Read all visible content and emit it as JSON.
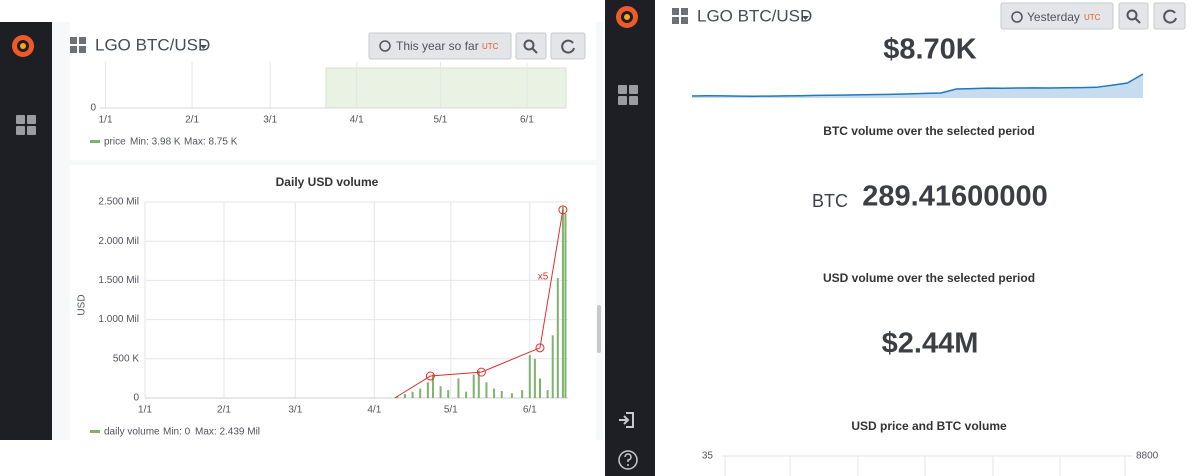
{
  "left": {
    "header": {
      "title": "LGO BTC/USD",
      "time_range": "This year so far",
      "timezone": "UTC"
    },
    "price_panel": {
      "type": "line",
      "xlim": [
        -2,
        165
      ],
      "xticks": [
        {
          "value": 0,
          "label": "1/1"
        },
        {
          "value": 31,
          "label": "2/1"
        },
        {
          "value": 59,
          "label": "3/1"
        },
        {
          "value": 90,
          "label": "4/1"
        },
        {
          "value": 120,
          "label": "5/1"
        },
        {
          "value": 151,
          "label": "6/1"
        }
      ],
      "yticks": [
        0
      ],
      "highlight": [
        79,
        165
      ],
      "legend": {
        "name": "price",
        "min": "Min: 3.98 K",
        "max": "Max: 8.75 K"
      }
    },
    "volume_panel": {
      "type": "bar",
      "title": "Daily USD volume",
      "y_label": "USD",
      "color": "#7eb26d",
      "x": [
        99,
        102,
        105,
        108,
        111,
        113,
        116,
        119,
        123,
        126,
        129,
        131,
        134,
        137,
        140,
        144,
        148,
        151,
        153,
        155,
        158,
        160,
        162,
        164,
        165
      ],
      "values": [
        20000,
        50000,
        80000,
        120000,
        200000,
        300000,
        150000,
        100000,
        250000,
        80000,
        300000,
        350000,
        200000,
        120000,
        90000,
        60000,
        100000,
        550000,
        500000,
        250000,
        100000,
        800000,
        1530000,
        2439000,
        2350000
      ],
      "xlim": [
        0,
        166
      ],
      "ylim": [
        0,
        2500000
      ],
      "xticks": [
        {
          "value": 0,
          "label": "1/1"
        },
        {
          "value": 31,
          "label": "2/1"
        },
        {
          "value": 59,
          "label": "3/1"
        },
        {
          "value": 90,
          "label": "4/1"
        },
        {
          "value": 120,
          "label": "5/1"
        },
        {
          "value": 151,
          "label": "6/1"
        }
      ],
      "yticks": [
        0,
        {
          "value": 500000,
          "label": "500 K"
        },
        {
          "value": 1000000,
          "label": "1.000 Mil"
        },
        {
          "value": 1500000,
          "label": "1.500 Mil"
        },
        {
          "value": 2000000,
          "label": "2.000 Mil"
        },
        {
          "value": 2500000,
          "label": "2.500 Mil"
        }
      ],
      "trend": {
        "x": [
          98,
          112,
          132,
          155,
          164
        ],
        "values": [
          0,
          280000,
          330000,
          640000,
          2400000
        ],
        "color": "#e02f2f",
        "label": "x5"
      },
      "legend": {
        "name": "daily volume",
        "min": "Min: 0",
        "max": "Max: 2.439 Mil"
      }
    }
  },
  "right": {
    "header": {
      "title": "LGO BTC/USD",
      "time_range": "Yesterday",
      "timezone": "UTC"
    },
    "price": {
      "value_label": "$8.70K",
      "sparkline": {
        "values": [
          8335,
          8338,
          8336,
          8332,
          8330,
          8333,
          8337,
          8340,
          8345,
          8348,
          8352,
          8356,
          8360,
          8365,
          8372,
          8380,
          8387,
          8456,
          8462,
          8470,
          8468,
          8473,
          8476,
          8472,
          8478,
          8480,
          8485,
          8520,
          8560,
          8716
        ],
        "ylim": [
          8300,
          8750
        ],
        "color": "#1f78c1"
      }
    },
    "btc_volume": {
      "title": "BTC volume over the selected period",
      "unit": "BTC",
      "value": "289.41600000"
    },
    "usd_volume": {
      "title": "USD volume over the selected period",
      "value": "$2.44M"
    },
    "bottom_chart": {
      "title": "USD price and BTC volume",
      "yticks": [
        35
      ],
      "y2ticks": [
        8800
      ]
    }
  }
}
